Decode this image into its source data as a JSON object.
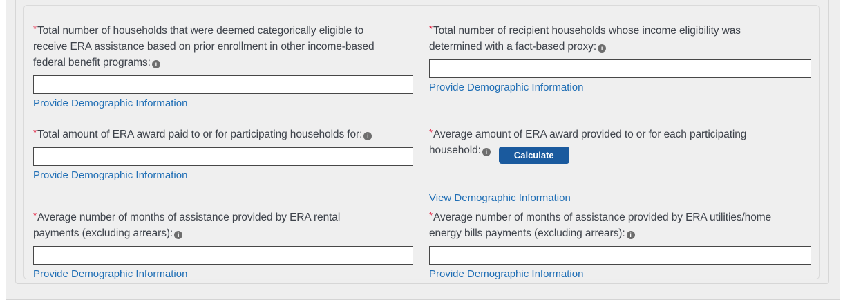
{
  "panel": {
    "required_marker": "*",
    "info_icon_glyph": "i",
    "colors": {
      "background": "#efefef",
      "label_text": "#3e434b",
      "link_blue": "#1f6eb5",
      "required_red": "#e31c3d",
      "button_blue": "#1a5a9e",
      "input_border": "#474747"
    },
    "fields": [
      {
        "id": "categorically-eligible",
        "label": "Total number of households that were deemed categorically eligible to\nreceive ERA assistance based on prior enrollment in other income-based\nfederal benefit programs:",
        "value": "",
        "link": "Provide Demographic Information"
      },
      {
        "id": "fact-based-proxy",
        "label": "Total number of recipient households whose income eligibility was\ndetermined with a fact-based proxy:",
        "value": "",
        "link": "Provide Demographic Information"
      },
      {
        "id": "total-award-paid",
        "label": "Total amount of ERA award paid to or for participating households for:",
        "value": "",
        "link": "Provide Demographic Information"
      },
      {
        "id": "average-award",
        "label": "Average amount of ERA award provided to or for each participating\nhousehold:",
        "button_label": "Calculate",
        "link": "View Demographic Information"
      },
      {
        "id": "avg-months-rental",
        "label": "Average number of months of assistance provided by ERA rental\npayments (excluding arrears):",
        "value": "",
        "link": "Provide Demographic Information"
      },
      {
        "id": "avg-months-utilities",
        "label": "Average number of months of assistance provided by ERA utilities/home\nenergy bills payments (excluding arrears):",
        "value": "",
        "link": "Provide Demographic Information"
      }
    ]
  }
}
